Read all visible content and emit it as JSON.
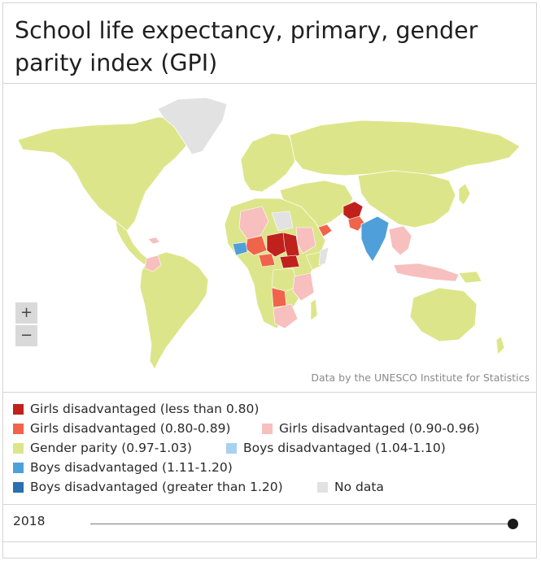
{
  "title": "School life expectancy, primary, gender parity index (GPI)",
  "credit": "Data by the UNESCO Institute for Statistics",
  "zoom": {
    "in_label": "+",
    "out_label": "−"
  },
  "legend": [
    {
      "label": "Girls disadvantaged (less than 0.80)",
      "color": "#c0211c"
    },
    {
      "label": "Girls disadvantaged (0.80-0.89)",
      "color": "#f0644b"
    },
    {
      "label": "Girls disadvantaged (0.90-0.96)",
      "color": "#f7bfbe"
    },
    {
      "label": "Gender parity (0.97-1.03)",
      "color": "#dde58a"
    },
    {
      "label": "Boys disadvantaged (1.04-1.10)",
      "color": "#a8d1ee"
    },
    {
      "label": "Boys disadvantaged (1.11-1.20)",
      "color": "#4fa0da"
    },
    {
      "label": "Boys disadvantaged (greater than 1.20)",
      "color": "#2a6fb0"
    },
    {
      "label": "No data",
      "color": "#e2e2e2"
    }
  ],
  "timeline": {
    "year": "2018"
  },
  "colors": {
    "ocean": "#ffffff",
    "border": "#ffffff"
  }
}
